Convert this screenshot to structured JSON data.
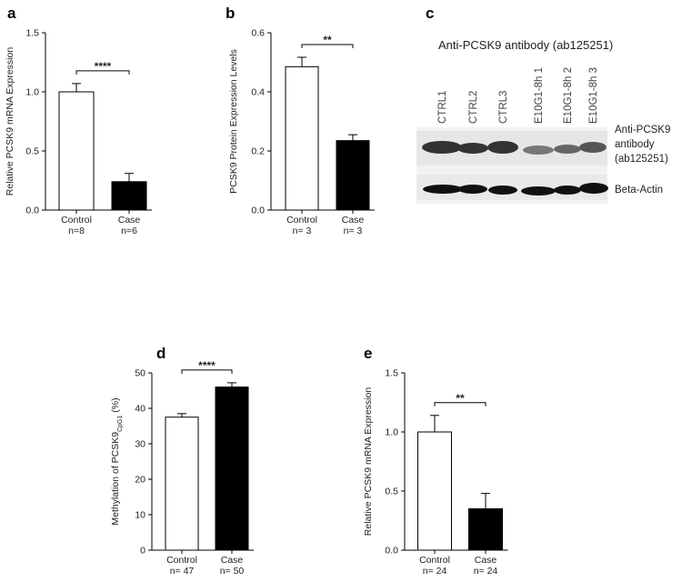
{
  "chart_data": [
    {
      "type": "bar",
      "panel": "a",
      "ylabel": "Relative PCSK9 mRNA Expression",
      "categories": [
        "Control",
        "Case"
      ],
      "sample_sizes": [
        "n=8",
        "n=6"
      ],
      "values": [
        1.0,
        0.24
      ],
      "errors": [
        0.07,
        0.07
      ],
      "colors": [
        "#ffffff",
        "#000000"
      ],
      "significance": "****",
      "ylim": [
        0,
        1.5
      ],
      "yticks": [
        {
          "value": 0,
          "label": "0.0"
        },
        0.5,
        {
          "value": 1,
          "label": "1.0"
        },
        1.5
      ]
    },
    {
      "type": "bar",
      "panel": "b",
      "ylabel": "PCSK9 Protein Expression Levels",
      "categories": [
        "Control",
        "Case"
      ],
      "sample_sizes": [
        "n= 3",
        "n= 3"
      ],
      "values": [
        0.485,
        0.235
      ],
      "errors": [
        0.032,
        0.02
      ],
      "colors": [
        "#ffffff",
        "#000000"
      ],
      "significance": "**",
      "ylim": [
        0,
        0.6
      ],
      "yticks": [
        {
          "value": 0,
          "label": "0.0"
        },
        0.2,
        0.4,
        0.6
      ]
    },
    {
      "type": "bar",
      "panel": "d",
      "ylabel": "Methylation of PCSK9",
      "ylabel_sub": "CpG1",
      "ylabel_suffix": " (%)",
      "categories": [
        "Control",
        "Case"
      ],
      "sample_sizes": [
        "n= 47",
        "n= 50"
      ],
      "values": [
        37.5,
        46
      ],
      "errors": [
        1.0,
        1.2
      ],
      "colors": [
        "#ffffff",
        "#000000"
      ],
      "significance": "****",
      "ylim": [
        0,
        50
      ],
      "yticks": [
        0,
        10,
        20,
        30,
        40,
        50
      ]
    },
    {
      "type": "bar",
      "panel": "e",
      "ylabel": "Relative PCSK9 mRNA Expression",
      "categories": [
        "Control",
        "Case"
      ],
      "sample_sizes": [
        "n= 24",
        "n= 24"
      ],
      "values": [
        1.0,
        0.35
      ],
      "errors": [
        0.14,
        0.13
      ],
      "colors": [
        "#ffffff",
        "#000000"
      ],
      "significance": "**",
      "ylim": [
        0,
        1.5
      ],
      "yticks": [
        {
          "value": 0,
          "label": "0.0"
        },
        0.5,
        {
          "value": 1,
          "label": "1.0"
        },
        1.5
      ]
    }
  ],
  "blot": {
    "panel": "c",
    "title": "Anti-PCSK9 antibody (ab125251)",
    "lanes": [
      "CTRL1",
      "CTRL2",
      "CTRL3",
      "E10G1-8h 1",
      "E10G1-8h 2",
      "E10G1-8h 3"
    ],
    "band_label": [
      "Anti-PCSK9",
      "antibody",
      "(ab125251)"
    ],
    "control_label": "Beta-Actin"
  }
}
